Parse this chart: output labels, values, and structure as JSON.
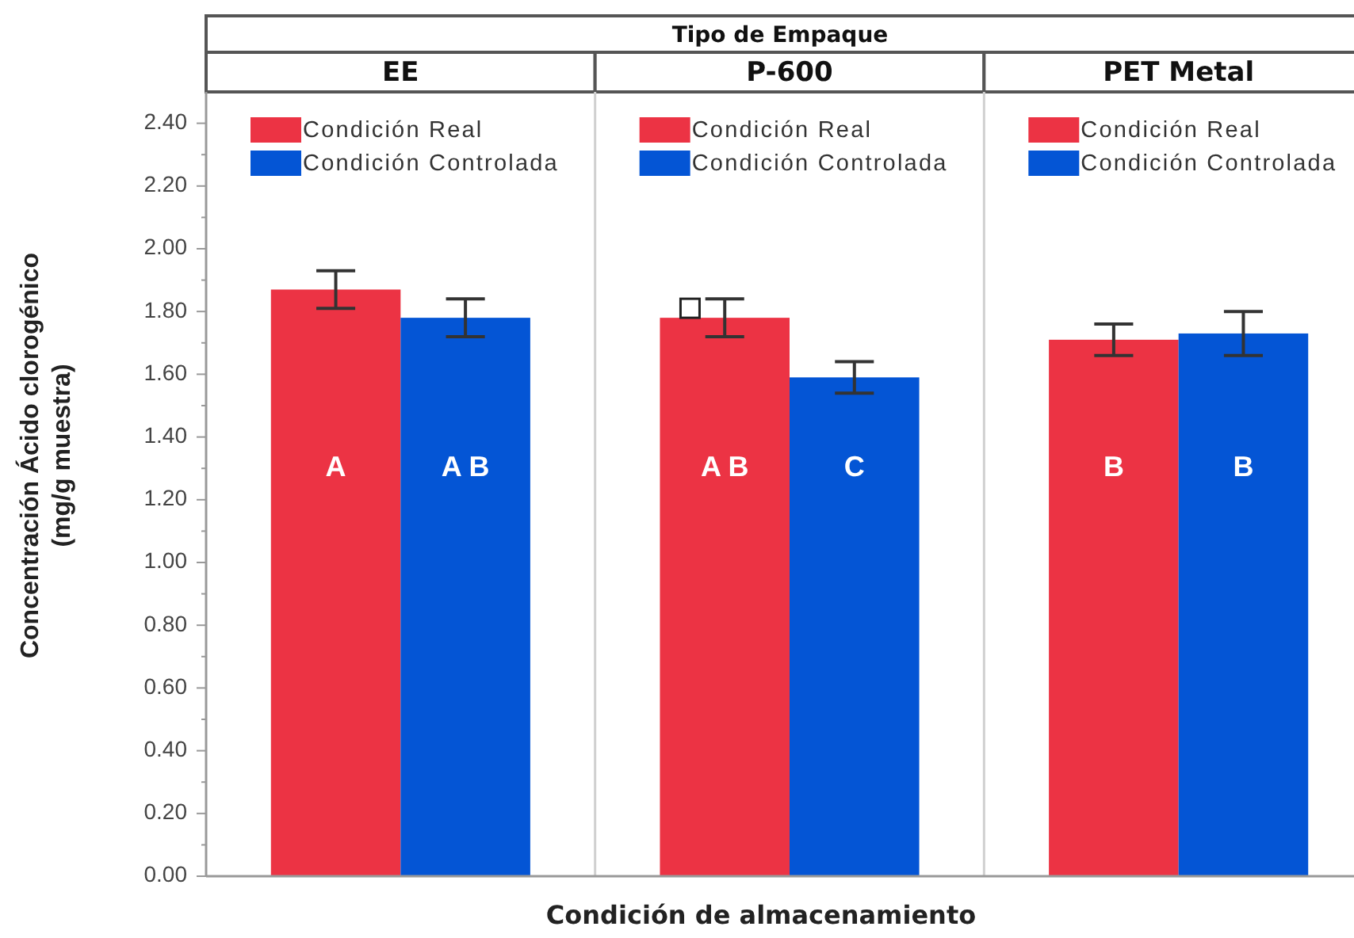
{
  "chart_data": {
    "type": "bar",
    "title": "Tipo de Empaque",
    "xlabel": "Condición de almacenamiento",
    "ylabel": "Concentración Ácido clorogénico\n(mg/g muestra)",
    "categories": [
      "EE",
      "P-600",
      "PET Metal"
    ],
    "series": [
      {
        "name": "Condición Real",
        "color": "#ec3344",
        "values": [
          1.87,
          1.78,
          1.71
        ],
        "errors": [
          0.06,
          0.06,
          0.05
        ],
        "value_labels": [
          "A",
          "A B",
          "B"
        ]
      },
      {
        "name": "Condición Controlada",
        "color": "#0455d5",
        "values": [
          1.78,
          1.59,
          1.73
        ],
        "errors": [
          0.06,
          0.05,
          0.07
        ],
        "value_labels": [
          "A B",
          "C",
          "B"
        ]
      }
    ],
    "ylim": [
      0,
      2.5
    ],
    "yticks": [
      {
        "value": 0,
        "label": "0.00"
      },
      {
        "value": 0.1,
        "label": null
      },
      {
        "value": 0.2,
        "label": "0.20"
      },
      {
        "value": 0.3,
        "label": null
      },
      {
        "value": 0.4,
        "label": "0.40"
      },
      {
        "value": 0.5,
        "label": null
      },
      {
        "value": 0.6,
        "label": "0.60"
      },
      {
        "value": 0.7,
        "label": null
      },
      {
        "value": 0.8,
        "label": "0.80"
      },
      {
        "value": 0.9,
        "label": null
      },
      {
        "value": 1,
        "label": "1.00"
      },
      {
        "value": 1.1,
        "label": null
      },
      {
        "value": 1.2,
        "label": "1.20"
      },
      {
        "value": 1.3,
        "label": null
      },
      {
        "value": 1.4,
        "label": "1.40"
      },
      {
        "value": 1.5,
        "label": null
      },
      {
        "value": 1.6,
        "label": "1.60"
      },
      {
        "value": 1.7,
        "label": null
      },
      {
        "value": 1.8,
        "label": "1.80"
      },
      {
        "value": 1.9,
        "label": null
      },
      {
        "value": 2,
        "label": "2.00"
      },
      {
        "value": 2.1,
        "label": null
      },
      {
        "value": 2.2,
        "label": "2.20"
      },
      {
        "value": 2.3,
        "label": null
      },
      {
        "value": 2.4,
        "label": "2.40"
      }
    ],
    "legend": "top left",
    "grid": false
  }
}
